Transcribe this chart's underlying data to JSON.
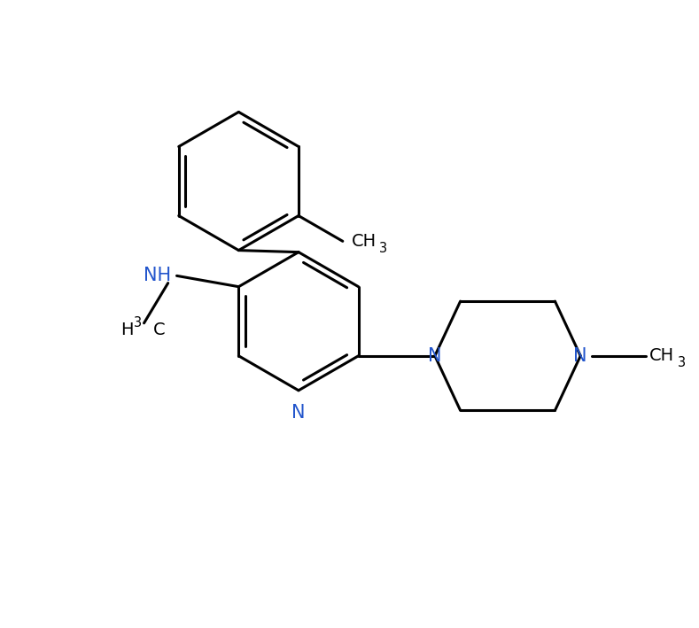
{
  "bg_color": "#ffffff",
  "bond_color": "#000000",
  "n_color": "#2255cc",
  "line_width": 2.2,
  "font_size_atom": 14,
  "font_size_subscript": 10.5,
  "xlim": [
    -0.5,
    9.0
  ],
  "ylim": [
    -1.0,
    7.5
  ]
}
